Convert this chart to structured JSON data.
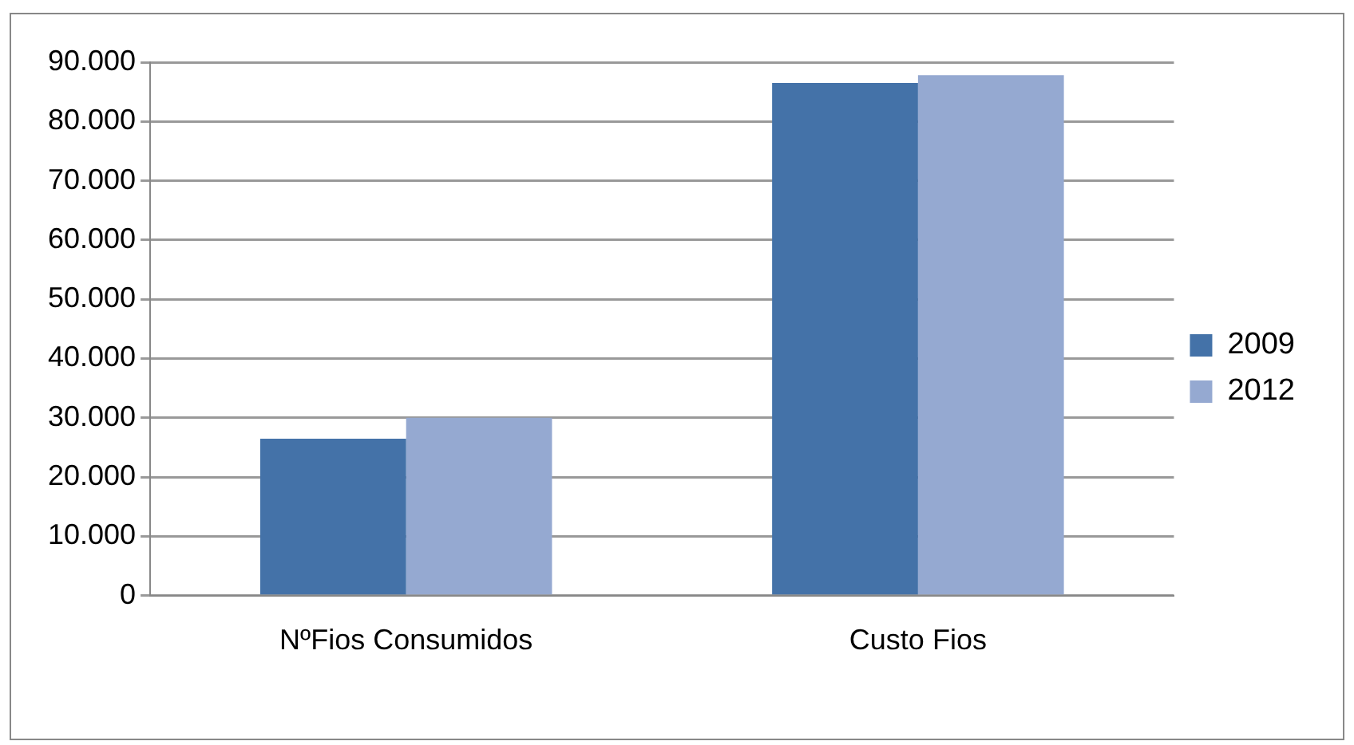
{
  "chart_data": {
    "type": "bar",
    "categories": [
      "NºFios Consumidos",
      "Custo Fios"
    ],
    "series": [
      {
        "name": "2009",
        "color": "#4472a8",
        "values": [
          26500,
          86500
        ]
      },
      {
        "name": "2012",
        "color": "#95a9d1",
        "values": [
          30000,
          87800
        ]
      }
    ],
    "ylim": [
      0,
      90000
    ],
    "yticks": [
      {
        "value": 0,
        "label": "0"
      },
      {
        "value": 10000,
        "label": "10.000"
      },
      {
        "value": 20000,
        "label": "20.000"
      },
      {
        "value": 30000,
        "label": "30.000"
      },
      {
        "value": 40000,
        "label": "40.000"
      },
      {
        "value": 50000,
        "label": "50.000"
      },
      {
        "value": 60000,
        "label": "60.000"
      },
      {
        "value": 70000,
        "label": "70.000"
      },
      {
        "value": 80000,
        "label": "80.000"
      },
      {
        "value": 90000,
        "label": "90.000"
      }
    ],
    "grid": "y",
    "legend": "right"
  }
}
